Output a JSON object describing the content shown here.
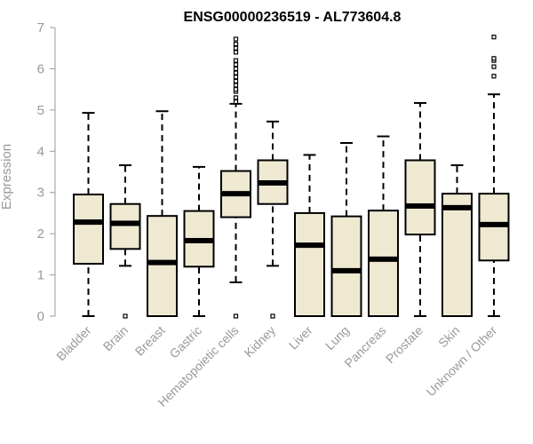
{
  "chart_data": {
    "type": "boxplot",
    "title": "ENSG00000236519 - AL773604.8",
    "xlabel": "",
    "ylabel": "Expression",
    "ylim": [
      0,
      7
    ],
    "yticks": [
      "0",
      "1",
      "2",
      "3",
      "4",
      "5",
      "6",
      "7"
    ],
    "box_fill": "#efe9d2",
    "line_color": "#000000",
    "axis_color": "#999999",
    "categories": [
      "Bladder",
      "Brain",
      "Breast",
      "Gastric",
      "Hematopoietic cells",
      "Kidney",
      "Liver",
      "Lung",
      "Pancreas",
      "Prostate",
      "Skin",
      "Unknown / Other"
    ],
    "boxes": [
      {
        "whisker_low": 0.0,
        "q1": 1.27,
        "median": 2.28,
        "q3": 2.95,
        "whisker_high": 4.93,
        "outliers": []
      },
      {
        "whisker_low": 1.22,
        "q1": 1.63,
        "median": 2.25,
        "q3": 2.72,
        "whisker_high": 3.66,
        "outliers": [
          0.0
        ]
      },
      {
        "whisker_low": 0.0,
        "q1": 0.0,
        "median": 1.3,
        "q3": 2.43,
        "whisker_high": 4.97,
        "outliers": []
      },
      {
        "whisker_low": 0.0,
        "q1": 1.2,
        "median": 1.83,
        "q3": 2.55,
        "whisker_high": 3.62,
        "outliers": []
      },
      {
        "whisker_low": 0.82,
        "q1": 2.4,
        "median": 2.97,
        "q3": 3.52,
        "whisker_high": 5.15,
        "outliers": [
          0.0,
          5.2,
          5.3,
          5.45,
          5.5,
          5.6,
          5.7,
          5.8,
          5.9,
          6.0,
          6.1,
          6.2,
          6.4,
          6.5,
          6.6,
          6.72
        ]
      },
      {
        "whisker_low": 1.22,
        "q1": 2.72,
        "median": 3.23,
        "q3": 3.78,
        "whisker_high": 4.72,
        "outliers": [
          0.0
        ]
      },
      {
        "whisker_low": 0.0,
        "q1": 0.0,
        "median": 1.72,
        "q3": 2.5,
        "whisker_high": 3.91,
        "outliers": []
      },
      {
        "whisker_low": 0.0,
        "q1": 0.0,
        "median": 1.1,
        "q3": 2.42,
        "whisker_high": 4.2,
        "outliers": []
      },
      {
        "whisker_low": 0.0,
        "q1": 0.0,
        "median": 1.38,
        "q3": 2.56,
        "whisker_high": 4.36,
        "outliers": []
      },
      {
        "whisker_low": 0.0,
        "q1": 1.98,
        "median": 2.67,
        "q3": 3.78,
        "whisker_high": 5.17,
        "outliers": []
      },
      {
        "whisker_low": 0.0,
        "q1": 0.0,
        "median": 2.63,
        "q3": 2.97,
        "whisker_high": 3.66,
        "outliers": []
      },
      {
        "whisker_low": 0.0,
        "q1": 1.35,
        "median": 2.22,
        "q3": 2.97,
        "whisker_high": 5.38,
        "outliers": [
          5.82,
          6.05,
          6.2,
          6.25,
          6.77
        ]
      }
    ]
  }
}
